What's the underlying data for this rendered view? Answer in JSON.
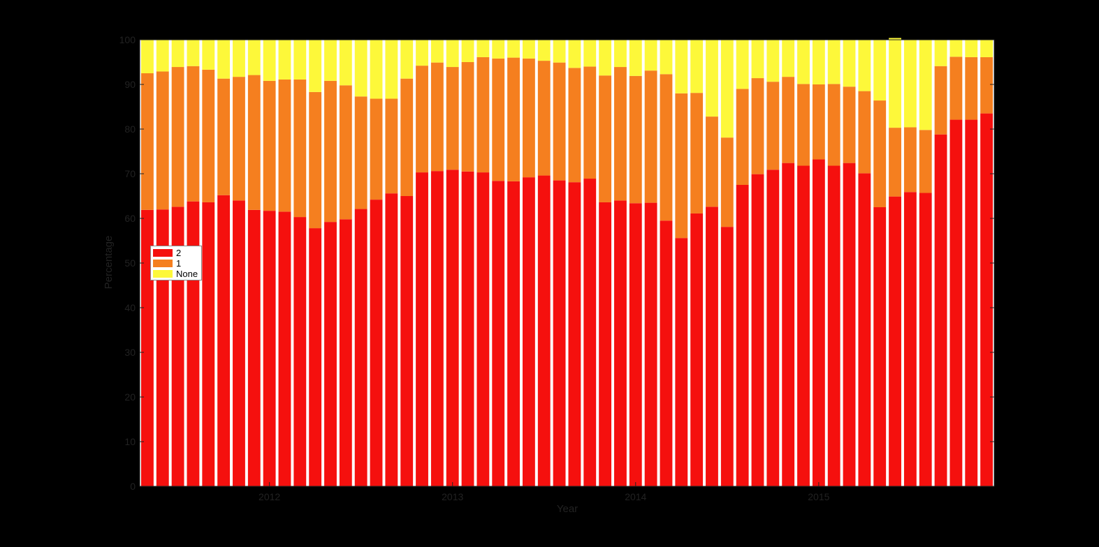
{
  "chart_data": {
    "type": "bar",
    "stacked": true,
    "xlabel": "Year",
    "ylabel": "Percentage",
    "ylim": [
      0,
      100
    ],
    "yticks": [
      0,
      10,
      20,
      30,
      40,
      50,
      60,
      70,
      80,
      90,
      100
    ],
    "xticks": [
      {
        "label": "2012",
        "at_bar": 8
      },
      {
        "label": "2013",
        "at_bar": 20
      },
      {
        "label": "2014",
        "at_bar": 32
      },
      {
        "label": "2015",
        "at_bar": 44
      }
    ],
    "grid": false,
    "legend_position": "left-middle",
    "colors": {
      "2": "#f5100e",
      "1": "#f57f1f",
      "None": "#fdf83a",
      "background": "#000000"
    },
    "series": [
      {
        "name": "2",
        "values": [
          61.9,
          62,
          62.6,
          63.8,
          63.6,
          65.2,
          64,
          61.9,
          61.7,
          61.5,
          60.3,
          57.8,
          59.2,
          59.8,
          62.1,
          64.2,
          65.6,
          65,
          70.3,
          70.6,
          70.9,
          70.5,
          70.3,
          68.4,
          68.3,
          69.2,
          69.6,
          68.5,
          68.1,
          68.9,
          63.6,
          64,
          63.4,
          63.5,
          59.5,
          55.6,
          61.1,
          62.6,
          58.1,
          67.5,
          69.9,
          70.9,
          72.4,
          71.8,
          73.2,
          71.8,
          72.4,
          70.1,
          62.5,
          64.9,
          65.9,
          65.7,
          78.8,
          82.1,
          82.1,
          83.5
        ]
      },
      {
        "name": "1",
        "values": [
          30.6,
          30.9,
          31.3,
          30.3,
          29.7,
          26.1,
          27.7,
          30.2,
          29.1,
          29.6,
          30.8,
          30.5,
          31.6,
          30,
          25.2,
          22.6,
          21.2,
          26.3,
          23.9,
          24.3,
          23,
          24.5,
          25.8,
          27.4,
          27.7,
          26.6,
          25.7,
          26.4,
          25.6,
          25.1,
          28.4,
          29.9,
          28.5,
          29.6,
          32.8,
          32.4,
          27,
          20.2,
          20,
          21.5,
          21.5,
          19.7,
          19.3,
          18.3,
          16.8,
          18.3,
          17.1,
          18.4,
          23.9,
          15.4,
          14.5,
          14.1,
          15.3,
          14.1,
          14,
          12.6
        ]
      },
      {
        "name": "None",
        "values": [
          7.5,
          7.1,
          6.1,
          5.9,
          6.7,
          8.7,
          8.3,
          7.9,
          9.2,
          8.9,
          8.9,
          11.7,
          9.2,
          10.2,
          12.7,
          13.2,
          13.2,
          8.7,
          5.8,
          5.1,
          6.1,
          5,
          3.9,
          4.2,
          4,
          4.2,
          4.7,
          5.1,
          6.3,
          6,
          8,
          6.1,
          8.1,
          6.9,
          7.7,
          12,
          11.9,
          17.2,
          21.9,
          11,
          8.6,
          9.4,
          8.3,
          9.9,
          10,
          9.9,
          10.5,
          11.5,
          13.6,
          20.1,
          19.6,
          20.2,
          5.9,
          3.8,
          3.9,
          3.9
        ]
      }
    ],
    "categories": [
      "",
      "",
      "",
      "",
      "",
      "",
      "",
      "",
      "",
      "",
      "",
      "",
      "",
      "",
      "",
      "",
      "",
      "",
      "",
      "",
      "",
      "",
      "",
      "",
      "",
      "",
      "",
      "",
      "",
      "",
      "",
      "",
      "",
      "",
      "",
      "",
      "",
      "",
      "",
      "",
      "",
      "",
      "",
      "",
      "",
      "",
      "",
      "",
      "",
      "",
      "",
      "",
      "",
      "",
      "",
      ""
    ]
  },
  "legend": {
    "items": [
      {
        "label": "2"
      },
      {
        "label": "1"
      },
      {
        "label": "None"
      }
    ]
  }
}
